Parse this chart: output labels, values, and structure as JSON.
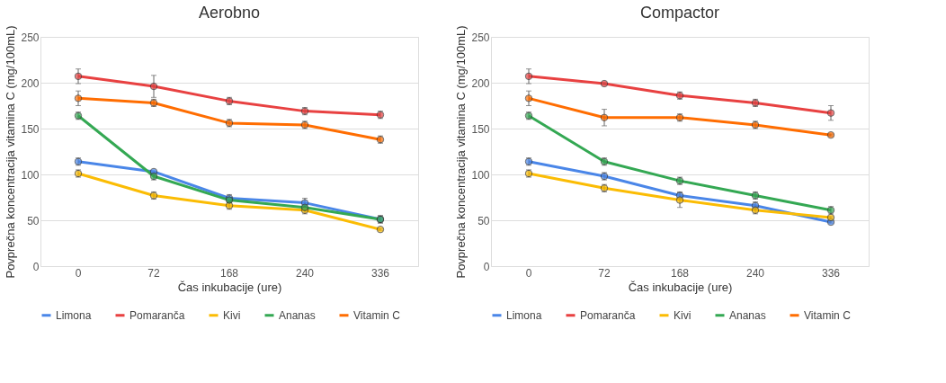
{
  "chart_data": [
    {
      "type": "line",
      "title": "Aerobno",
      "xlabel": "Čas inkubacije (ure)",
      "ylabel": "Povprečna koncentracija vitamina C (mg/100mL)",
      "categories": [
        "0",
        "72",
        "168",
        "240",
        "336"
      ],
      "ylim": [
        0,
        250
      ],
      "yticks": [
        0,
        50,
        100,
        150,
        200,
        250
      ],
      "grid": "y",
      "legend": "bottom",
      "marker": "circle",
      "line_style": "solid",
      "series": [
        {
          "name": "Limona",
          "color": "#4a86e8",
          "values": [
            114,
            103,
            74,
            69,
            51
          ],
          "errors": [
            4,
            null,
            4,
            5,
            4
          ]
        },
        {
          "name": "Pomaranča",
          "color": "#e84141",
          "values": [
            207,
            196,
            180,
            169,
            165
          ],
          "errors": [
            8,
            12,
            4,
            4,
            4
          ]
        },
        {
          "name": "Kivi",
          "color": "#fbbc04",
          "values": [
            101,
            77,
            66,
            61,
            40
          ],
          "errors": [
            4,
            4,
            4,
            4,
            1
          ]
        },
        {
          "name": "Ananas",
          "color": "#34a853",
          "values": [
            164,
            98,
            72,
            64,
            51
          ],
          "errors": [
            4,
            4,
            3,
            3,
            4
          ]
        },
        {
          "name": "Vitamin C",
          "color": "#ff6d01",
          "values": [
            183,
            178,
            156,
            154,
            138
          ],
          "errors": [
            8,
            4,
            4,
            4,
            4
          ]
        }
      ]
    },
    {
      "type": "line",
      "title": "Compactor",
      "xlabel": "Čas inkubacije (ure)",
      "ylabel": "Povprečna koncentracija vitamina C (mg/100mL)",
      "categories": [
        "0",
        "72",
        "168",
        "240",
        "336"
      ],
      "ylim": [
        0,
        250
      ],
      "yticks": [
        0,
        50,
        100,
        150,
        200,
        250
      ],
      "grid": "y",
      "legend": "bottom",
      "marker": "circle",
      "line_style": "solid",
      "series": [
        {
          "name": "Limona",
          "color": "#4a86e8",
          "values": [
            114,
            98,
            77,
            66,
            48
          ],
          "errors": [
            4,
            4,
            4,
            4,
            1
          ]
        },
        {
          "name": "Pomaranča",
          "color": "#e84141",
          "values": [
            207,
            199,
            186,
            178,
            167
          ],
          "errors": [
            8,
            1,
            4,
            4,
            8
          ]
        },
        {
          "name": "Kivi",
          "color": "#fbbc04",
          "values": [
            101,
            85,
            72,
            61,
            53
          ],
          "errors": [
            4,
            4,
            8,
            4,
            1
          ]
        },
        {
          "name": "Ananas",
          "color": "#34a853",
          "values": [
            164,
            114,
            93,
            77,
            61
          ],
          "errors": [
            4,
            4,
            4,
            4,
            4
          ]
        },
        {
          "name": "Vitamin C",
          "color": "#ff6d01",
          "values": [
            183,
            162,
            162,
            154,
            143
          ],
          "errors": [
            8,
            9,
            4,
            4,
            1
          ]
        }
      ]
    }
  ]
}
